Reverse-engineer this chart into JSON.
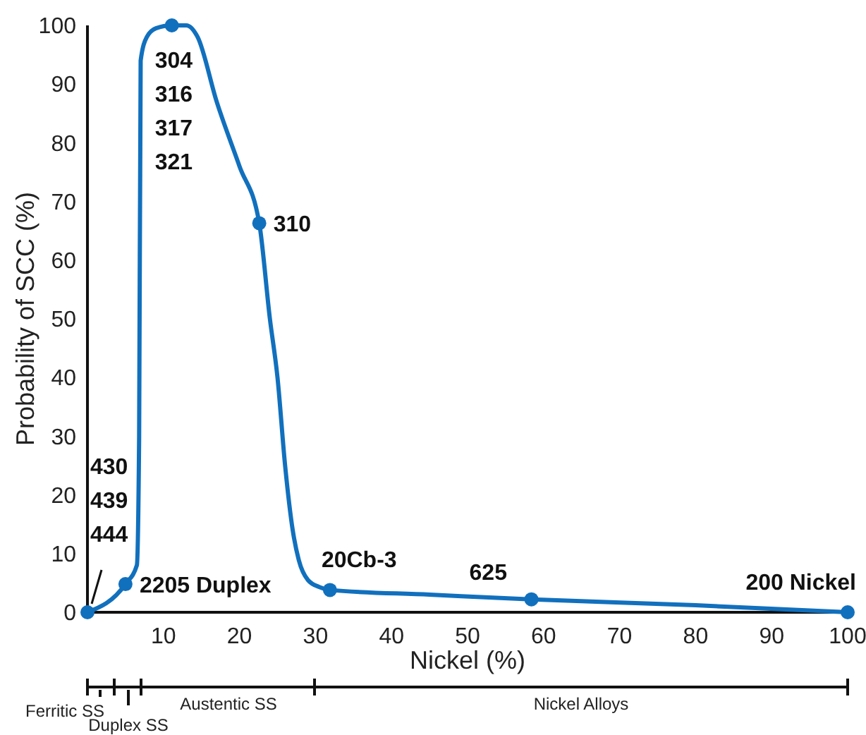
{
  "chart_data": {
    "type": "line",
    "xlabel": "Nickel (%)",
    "ylabel": "Probability of SCC (%)",
    "xlim": [
      0,
      100
    ],
    "ylim": [
      0,
      100
    ],
    "xticks": [
      10,
      20,
      30,
      40,
      50,
      60,
      70,
      80,
      90,
      100
    ],
    "yticks": [
      0,
      10,
      20,
      30,
      40,
      50,
      60,
      70,
      80,
      90,
      100
    ],
    "grid": false,
    "line_style": "solid",
    "series": [
      {
        "color": "#1170bd",
        "marker": "none",
        "x": [
          0,
          5,
          6.5,
          6.8,
          7,
          7.8,
          9,
          11.1,
          13,
          14.5,
          17,
          20,
          22.6,
          24,
          25,
          26,
          27,
          27.8,
          29,
          30.5,
          31.9,
          45,
          58.4,
          80,
          100
        ],
        "values": [
          0,
          4.8,
          8,
          30,
          94,
          98,
          99.5,
          100,
          100,
          98,
          87,
          76,
          66.3,
          50,
          40,
          25,
          14,
          8.9,
          5.5,
          4.3,
          3.8,
          3,
          2.2,
          1.2,
          0
        ]
      },
      {
        "type": "scatter",
        "color": "#1170bd",
        "marker": "circle",
        "x": [
          0,
          5,
          11.1,
          22.6,
          31.9,
          58.4,
          100
        ],
        "values": [
          0,
          4.8,
          100,
          66.3,
          3.8,
          2.2,
          0
        ]
      }
    ],
    "annotations": [
      {
        "text": "304\n316\n317\n321",
        "x": 11.1,
        "y": 100
      },
      {
        "text": "310",
        "x": 22.6,
        "y": 66.3
      },
      {
        "text": "430\n439\n444",
        "x": 0,
        "y": 0
      },
      {
        "text": "2205 Duplex",
        "x": 5,
        "y": 4.8
      },
      {
        "text": "20Cb-3",
        "x": 31.9,
        "y": 3.8
      },
      {
        "text": "625",
        "x": 58.4,
        "y": 2.2
      },
      {
        "text": "200 Nickel",
        "x": 100,
        "y": 0
      },
      "Ferritic SS",
      "Duplex SS",
      "Austentic SS",
      "Nickel Alloys"
    ]
  }
}
